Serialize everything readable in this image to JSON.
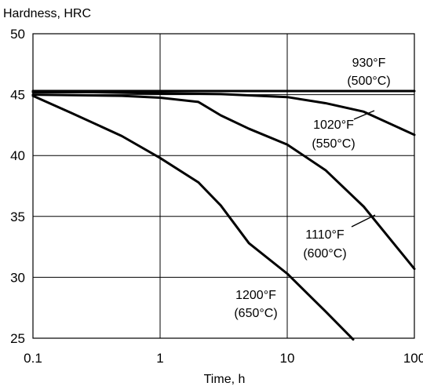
{
  "chart_data": {
    "type": "line",
    "title": "",
    "xlabel": "Time, h",
    "ylabel": "Hardness, HRC",
    "x_scale": "log",
    "xlim": [
      0.1,
      100
    ],
    "ylim": [
      25,
      50
    ],
    "grid": true,
    "x_ticks": [
      {
        "value": 0.1,
        "label": "0.1"
      },
      {
        "value": 1,
        "label": "1"
      },
      {
        "value": 10,
        "label": "10"
      },
      {
        "value": 100,
        "label": "100"
      }
    ],
    "y_ticks": [
      {
        "value": 25,
        "label": "25"
      },
      {
        "value": 30,
        "label": "30"
      },
      {
        "value": 35,
        "label": "35"
      },
      {
        "value": 40,
        "label": "40"
      },
      {
        "value": 45,
        "label": "45"
      },
      {
        "value": 50,
        "label": "50"
      }
    ],
    "series": [
      {
        "name": "930°F (500°C)",
        "label_lines": [
          "930°F",
          "(500°C)"
        ],
        "points": [
          {
            "x": 0.1,
            "y": 45.3
          },
          {
            "x": 1,
            "y": 45.3
          },
          {
            "x": 10,
            "y": 45.3
          },
          {
            "x": 100,
            "y": 45.3
          }
        ]
      },
      {
        "name": "1020°F (550°C)",
        "label_lines": [
          "1020°F",
          "(550°C)"
        ],
        "points": [
          {
            "x": 0.1,
            "y": 45.2
          },
          {
            "x": 0.3,
            "y": 45.2
          },
          {
            "x": 1,
            "y": 45.1
          },
          {
            "x": 3,
            "y": 45.05
          },
          {
            "x": 10,
            "y": 44.8
          },
          {
            "x": 20,
            "y": 44.3
          },
          {
            "x": 40,
            "y": 43.6
          },
          {
            "x": 100,
            "y": 41.7
          }
        ]
      },
      {
        "name": "1110°F (600°C)",
        "label_lines": [
          "1110°F",
          "(600°C)"
        ],
        "points": [
          {
            "x": 0.1,
            "y": 45.0
          },
          {
            "x": 0.5,
            "y": 44.9
          },
          {
            "x": 1,
            "y": 44.75
          },
          {
            "x": 2,
            "y": 44.4
          },
          {
            "x": 3,
            "y": 43.3
          },
          {
            "x": 5,
            "y": 42.2
          },
          {
            "x": 10,
            "y": 40.9
          },
          {
            "x": 20,
            "y": 38.8
          },
          {
            "x": 40,
            "y": 35.8
          },
          {
            "x": 100,
            "y": 30.7
          }
        ]
      },
      {
        "name": "1200°F (650°C)",
        "label_lines": [
          "1200°F",
          "(650°C)"
        ],
        "points": [
          {
            "x": 0.1,
            "y": 44.9
          },
          {
            "x": 0.2,
            "y": 43.5
          },
          {
            "x": 0.5,
            "y": 41.6
          },
          {
            "x": 1,
            "y": 39.8
          },
          {
            "x": 2,
            "y": 37.8
          },
          {
            "x": 3,
            "y": 35.9
          },
          {
            "x": 5,
            "y": 32.8
          },
          {
            "x": 10,
            "y": 30.3
          },
          {
            "x": 20,
            "y": 27.2
          },
          {
            "x": 33,
            "y": 24.9
          }
        ]
      }
    ]
  }
}
